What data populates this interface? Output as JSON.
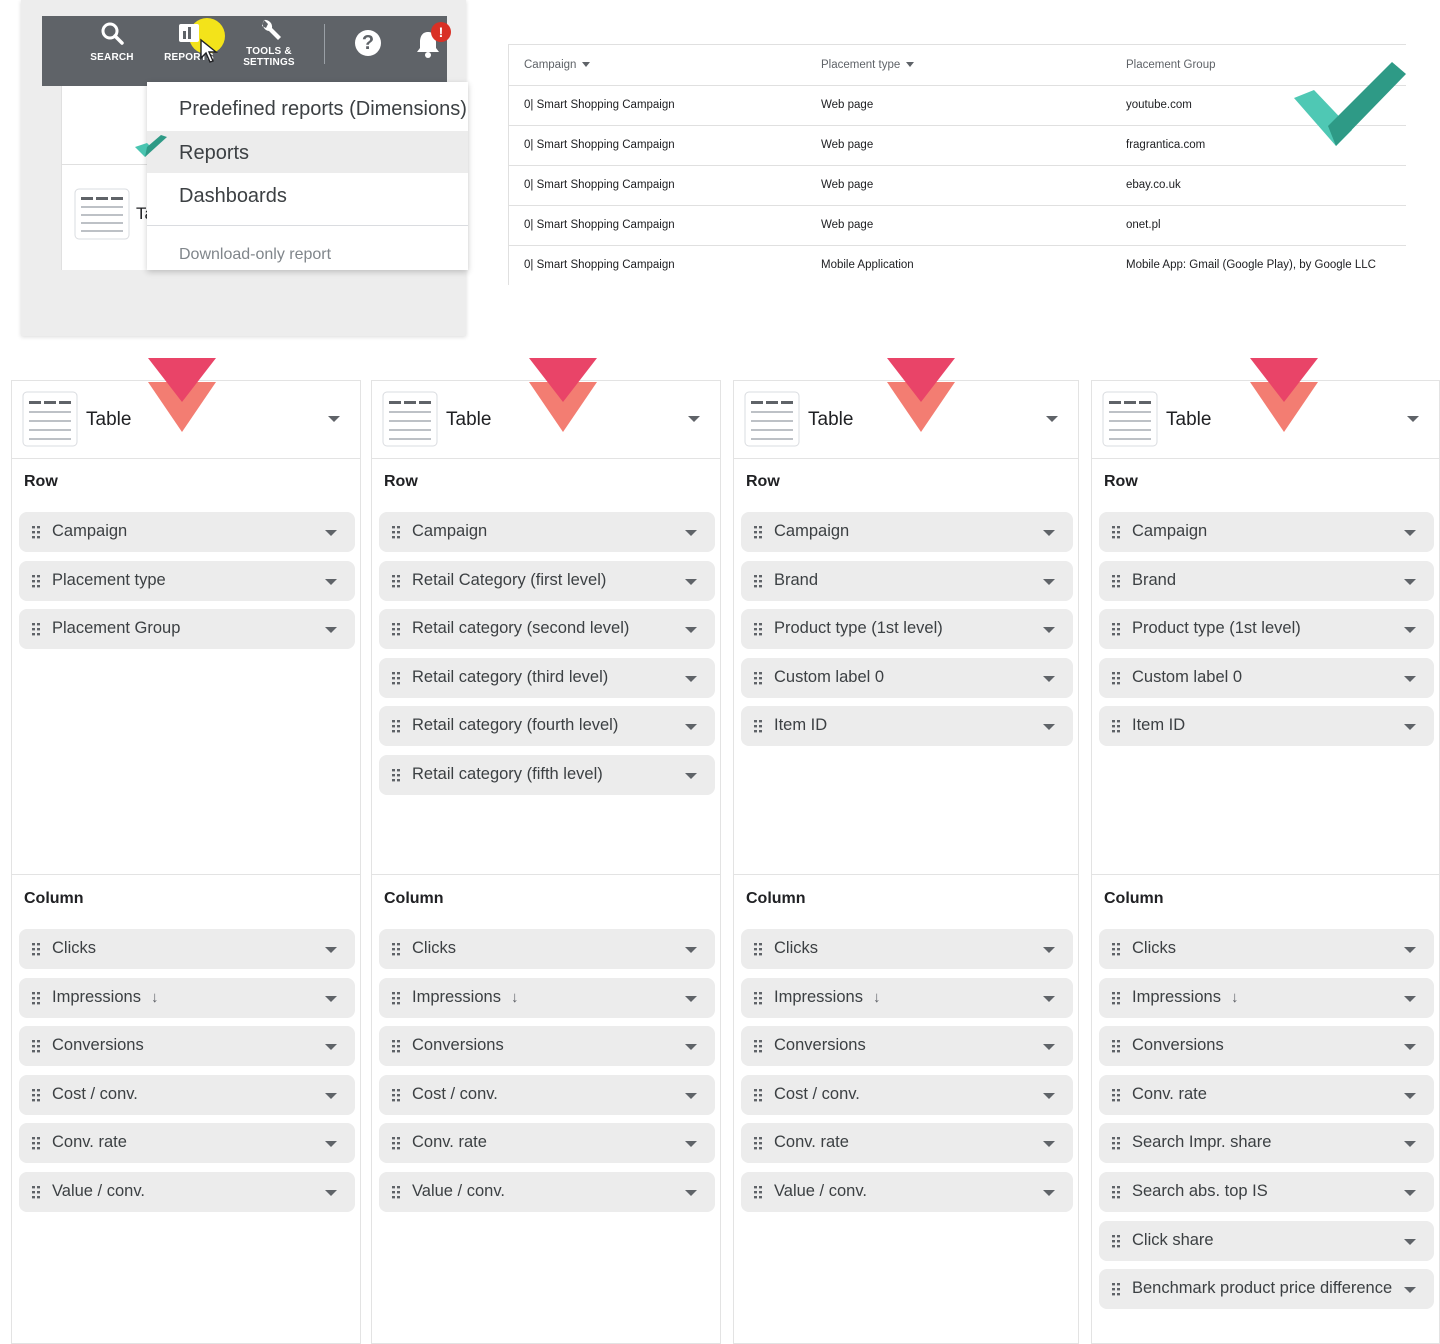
{
  "menu": {
    "nav": [
      {
        "label": "SEARCH",
        "icon": "search-icon"
      },
      {
        "label": "REPORTS",
        "icon": "reports-icon"
      },
      {
        "label_line1": "TOOLS &",
        "label_line2": "SETTINGS",
        "icon": "wrench-icon"
      }
    ],
    "help_icon": "?",
    "bell_badge": "!",
    "dropdown": {
      "items": [
        "Predefined reports (Dimensions)",
        "Reports",
        "Dashboards"
      ],
      "download_only": "Download-only report"
    },
    "partial_text": "Ta"
  },
  "report_table": {
    "headers": [
      "Campaign",
      "Placement type",
      "Placement Group"
    ],
    "rows": [
      [
        "0| Smart Shopping Campaign",
        "Web page",
        "youtube.com"
      ],
      [
        "0| Smart Shopping Campaign",
        "Web page",
        "fragrantica.com"
      ],
      [
        "0| Smart Shopping Campaign",
        "Web page",
        "ebay.co.uk"
      ],
      [
        "0| Smart Shopping Campaign",
        "Web page",
        "onet.pl"
      ],
      [
        "0| Smart Shopping Campaign",
        "Mobile Application",
        "Mobile App: Gmail (Google Play), by Google LLC"
      ]
    ]
  },
  "colors": {
    "teal": "#3fb7a3",
    "teal_dark": "#2e9a86",
    "arrow_top": "#e94468",
    "arrow_bottom": "#f2766a",
    "ads_bar": "#5f6368",
    "chip_bg": "#ececec"
  },
  "panels": [
    {
      "view": "Table",
      "row_title": "Row",
      "rows": [
        "Campaign",
        "Placement type",
        "Placement Group"
      ],
      "column_title": "Column",
      "columns": [
        "Clicks",
        "Impressions",
        "Conversions",
        "Cost / conv.",
        "Conv. rate",
        "Value / conv."
      ]
    },
    {
      "view": "Table",
      "row_title": "Row",
      "rows": [
        "Campaign",
        "Retail Category (first level)",
        "Retail category (second level)",
        "Retail category (third level)",
        "Retail category (fourth level)",
        "Retail category (fifth level)"
      ],
      "column_title": "Column",
      "columns": [
        "Clicks",
        "Impressions",
        "Conversions",
        "Cost / conv.",
        "Conv. rate",
        "Value / conv."
      ]
    },
    {
      "view": "Table",
      "row_title": "Row",
      "rows": [
        "Campaign",
        "Brand",
        "Product type (1st level)",
        "Custom label 0",
        "Item ID"
      ],
      "column_title": "Column",
      "columns": [
        "Clicks",
        "Impressions",
        "Conversions",
        "Cost / conv.",
        "Conv. rate",
        "Value / conv."
      ]
    },
    {
      "view": "Table",
      "row_title": "Row",
      "rows": [
        "Campaign",
        "Brand",
        "Product type (1st level)",
        "Custom label 0",
        "Item ID"
      ],
      "column_title": "Column",
      "columns": [
        "Clicks",
        "Impressions",
        "Conversions",
        "Conv. rate",
        "Search Impr. share",
        "Search abs. top IS",
        "Click share",
        "Benchmark product price difference"
      ]
    }
  ],
  "sorted_column": "Impressions"
}
